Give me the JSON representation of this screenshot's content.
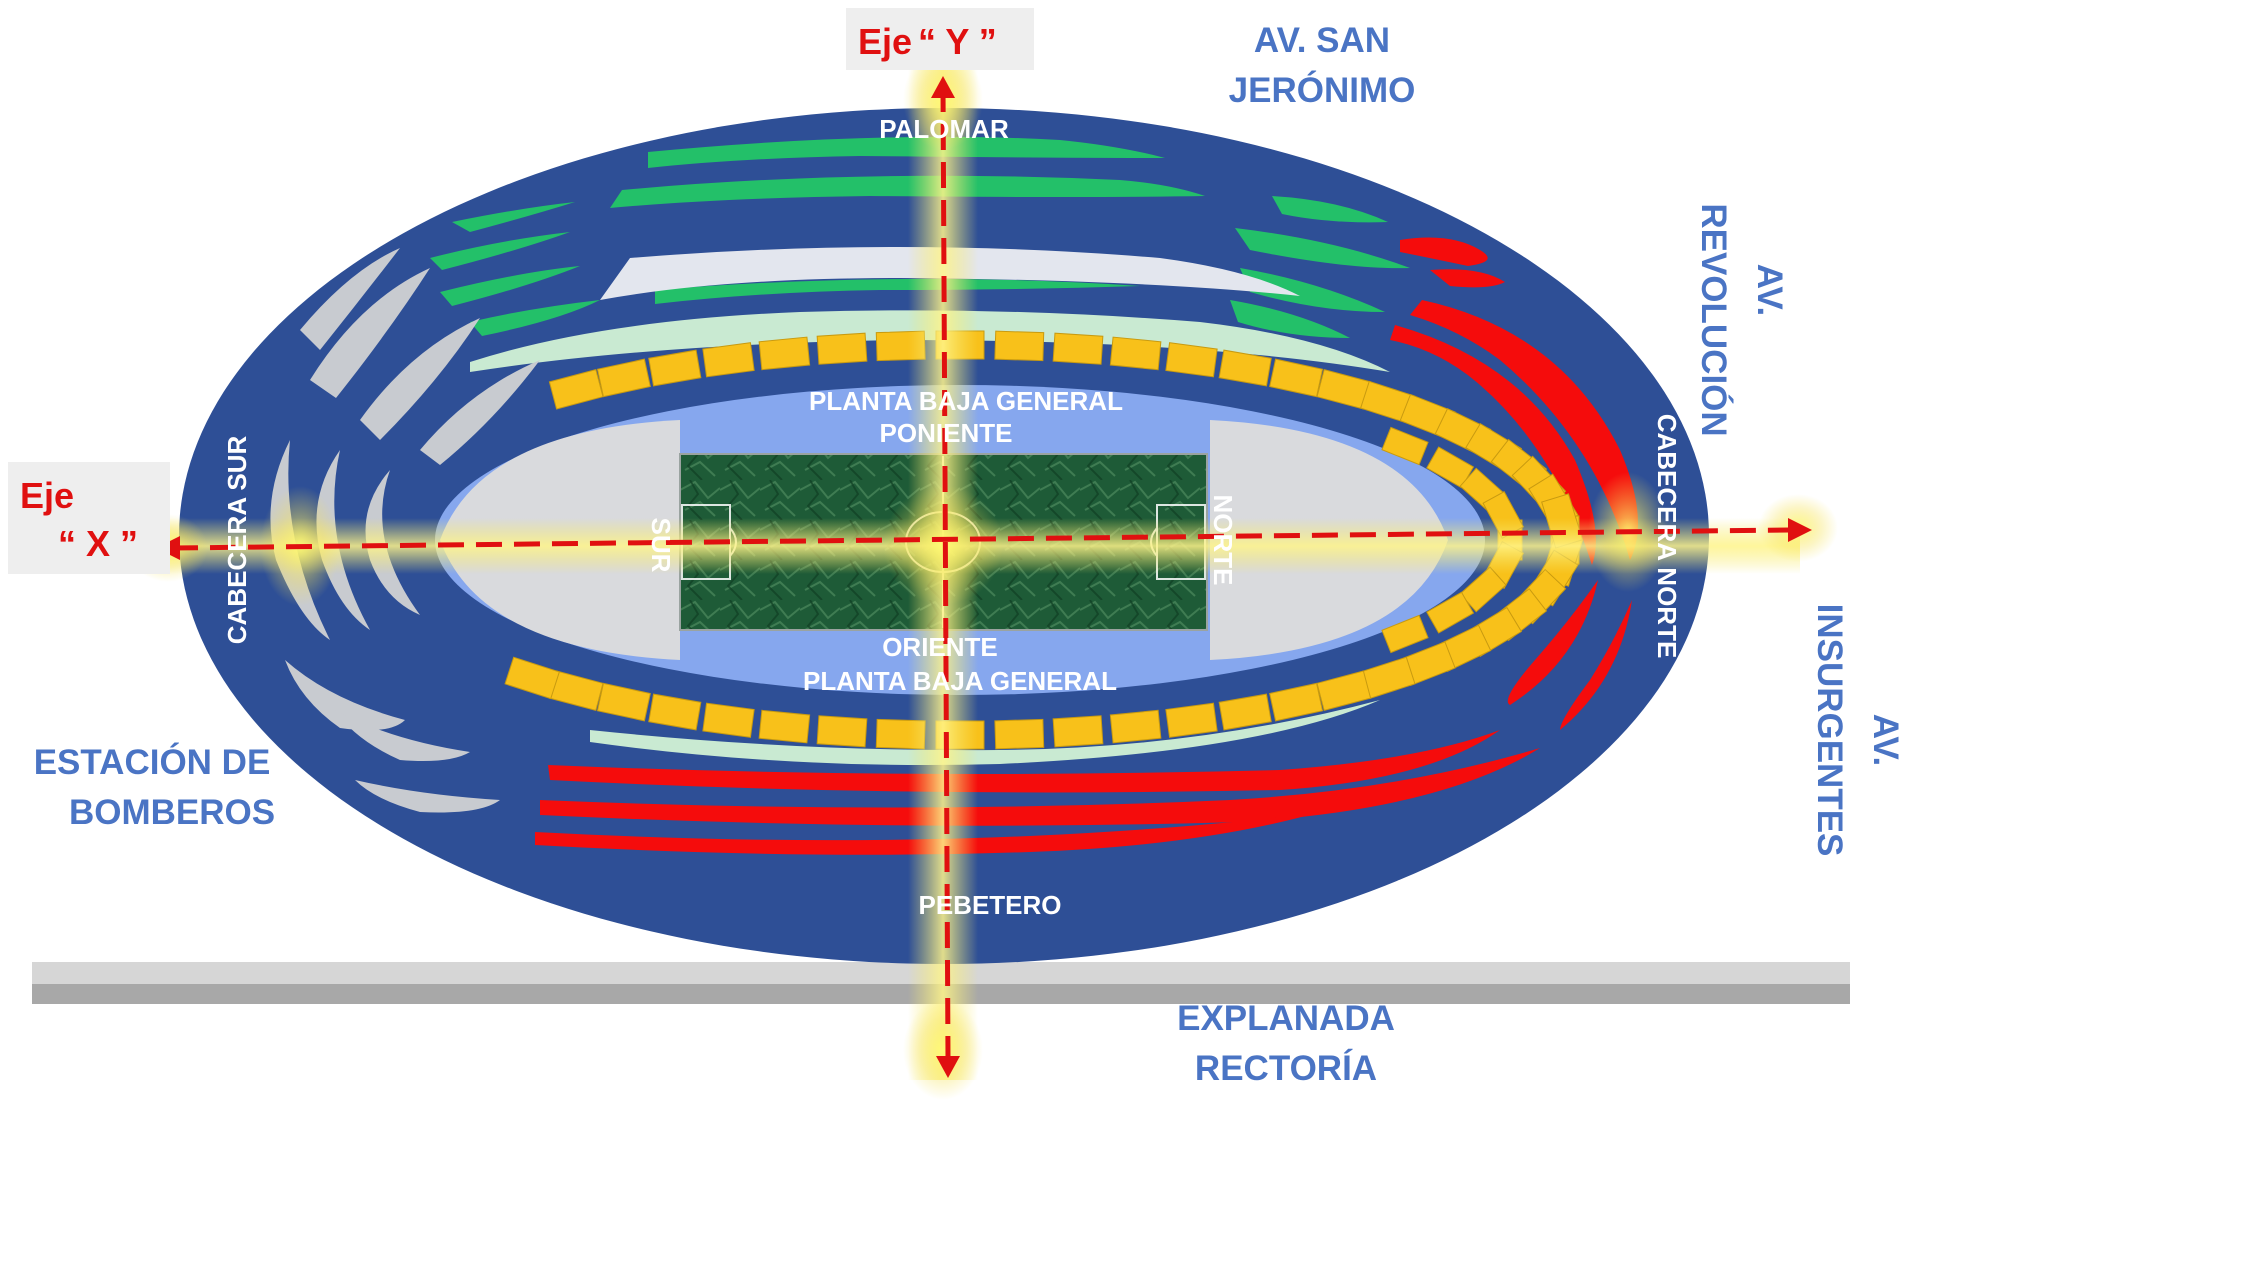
{
  "axes": {
    "y_prefix": "Eje",
    "y_letter": "“ Y ”",
    "x_prefix": "Eje",
    "x_letter": "“ X ”"
  },
  "streets": {
    "san_jeronimo_1": "AV. SAN",
    "san_jeronimo_2": "JERÓNIMO",
    "revolucion_1": "AV.",
    "revolucion_2": "REVOLUCIÓN",
    "insurgentes_1": "AV.",
    "insurgentes_2": "INSURGENTES",
    "bomberos_1": "ESTACIÓN DE",
    "bomberos_2": "BOMBEROS",
    "explanada_1": "EXPLANADA",
    "explanada_2": "RECTORÍA"
  },
  "stadium": {
    "palomar": "PALOMAR",
    "pebetero": "PEBETERO",
    "poniente_1": "PLANTA BAJA GENERAL",
    "poniente_2": "PONIENTE",
    "oriente_1": "ORIENTE",
    "oriente_2": "PLANTA BAJA GENERAL",
    "cabecera_sur": "CABECERA SUR",
    "cabecera_norte": "CABECERA NORTE",
    "sur": "SUR",
    "norte": "NORTE"
  },
  "colors": {
    "outer_ring": "#2e4f96",
    "inner_ring": "#86a7ee",
    "palomar_sections": "#23c069",
    "preferente": "#f8c11a",
    "cabecera_norte_sections": "#f50c0c",
    "cabecera_sur_sections": "#c8cbd0",
    "street_labels": "#4a74c4",
    "axis": "#e01010",
    "field": "#1f5a36"
  }
}
